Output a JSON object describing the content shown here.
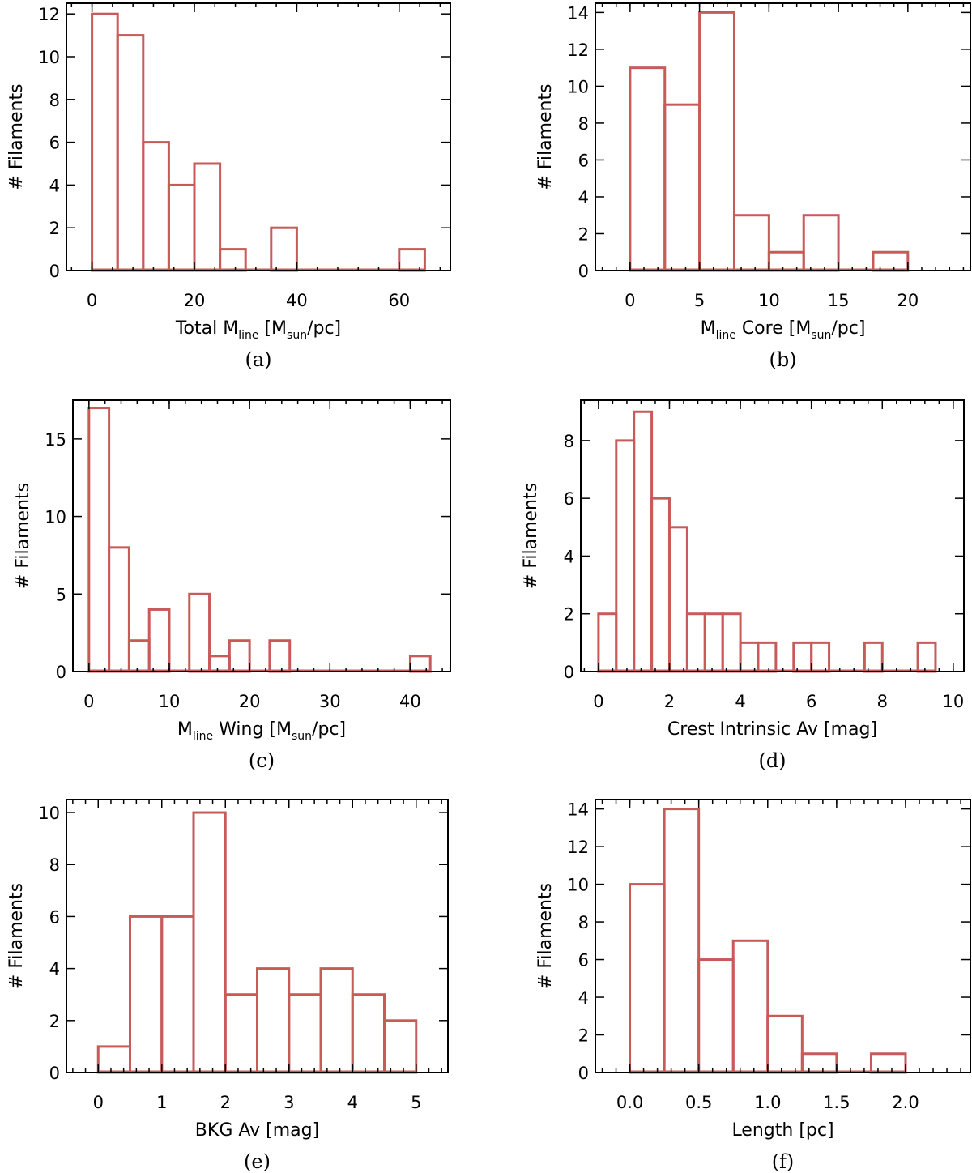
{
  "bar_color": "#c85a5a",
  "chart_data": [
    {
      "type": "bar",
      "caption": "(a)",
      "ylabel": "# Filaments",
      "xlabel_parts": [
        {
          "text": "Total M",
          "style": "normal"
        },
        {
          "text": "line",
          "style": "sub"
        },
        {
          "text": " [M",
          "style": "normal"
        },
        {
          "text": "sun",
          "style": "sub"
        },
        {
          "text": "/pc]",
          "style": "normal"
        }
      ],
      "xlim": [
        -5,
        70
      ],
      "ylim": [
        0,
        12.5
      ],
      "xticks": [
        0,
        20,
        40,
        60
      ],
      "xtick_labels": [
        "0",
        "20",
        "40",
        "60"
      ],
      "yticks": [
        0,
        2,
        4,
        6,
        8,
        10,
        12
      ],
      "ytick_labels": [
        "0",
        "2",
        "4",
        "6",
        "8",
        "10",
        "12"
      ],
      "bin_edges": [
        0,
        5,
        10,
        15,
        20,
        25,
        30,
        35,
        40,
        45,
        50,
        55,
        60,
        65
      ],
      "values": [
        12,
        11,
        6,
        4,
        5,
        1,
        0,
        2,
        0,
        0,
        0,
        0,
        1
      ]
    },
    {
      "type": "bar",
      "caption": "(b)",
      "ylabel": "# Filaments",
      "xlabel_parts": [
        {
          "text": "M",
          "style": "normal"
        },
        {
          "text": "line",
          "style": "sub"
        },
        {
          "text": " Core [M",
          "style": "normal"
        },
        {
          "text": "sun",
          "style": "sub"
        },
        {
          "text": "/pc]",
          "style": "normal"
        }
      ],
      "xlim": [
        -2.5,
        24.5
      ],
      "ylim": [
        0,
        14.5
      ],
      "xticks": [
        0,
        5,
        10,
        15,
        20
      ],
      "xtick_labels": [
        "0",
        "5",
        "10",
        "15",
        "20"
      ],
      "yticks": [
        0,
        2,
        4,
        6,
        8,
        10,
        12,
        14
      ],
      "ytick_labels": [
        "0",
        "2",
        "4",
        "6",
        "8",
        "10",
        "12",
        "14"
      ],
      "bin_edges": [
        0,
        2.5,
        5,
        7.5,
        10,
        12.5,
        15,
        17.5,
        20
      ],
      "values": [
        11,
        9,
        14,
        3,
        1,
        3,
        0,
        1
      ]
    },
    {
      "type": "bar",
      "caption": "(c)",
      "ylabel": "# Filaments",
      "xlabel_parts": [
        {
          "text": "M",
          "style": "normal"
        },
        {
          "text": "line",
          "style": "sub"
        },
        {
          "text": " Wing [M",
          "style": "normal"
        },
        {
          "text": "sun",
          "style": "sub"
        },
        {
          "text": "/pc]",
          "style": "normal"
        }
      ],
      "xlim": [
        -2,
        45
      ],
      "ylim": [
        0,
        17.5
      ],
      "xticks": [
        0,
        10,
        20,
        30,
        40
      ],
      "xtick_labels": [
        "0",
        "10",
        "20",
        "30",
        "40"
      ],
      "yticks": [
        0,
        5,
        10,
        15
      ],
      "ytick_labels": [
        "0",
        "5",
        "10",
        "15"
      ],
      "bin_edges": [
        0,
        2.5,
        5,
        7.5,
        10,
        12.5,
        15,
        17.5,
        20,
        22.5,
        25,
        27.5,
        30,
        32.5,
        35,
        37.5,
        40,
        42.5
      ],
      "values": [
        17,
        8,
        2,
        4,
        0,
        5,
        1,
        2,
        0,
        2,
        0,
        0,
        0,
        0,
        0,
        0,
        1
      ]
    },
    {
      "type": "bar",
      "caption": "(d)",
      "ylabel": "# Filaments",
      "xlabel_parts": [
        {
          "text": "Crest Intrinsic Av [mag]",
          "style": "normal"
        }
      ],
      "xlim": [
        -0.5,
        10.3
      ],
      "ylim": [
        0,
        9.4
      ],
      "xticks": [
        0,
        2,
        4,
        6,
        8,
        10
      ],
      "xtick_labels": [
        "0",
        "2",
        "4",
        "6",
        "8",
        "10"
      ],
      "yticks": [
        0,
        2,
        4,
        6,
        8
      ],
      "ytick_labels": [
        "0",
        "2",
        "4",
        "6",
        "8"
      ],
      "bin_edges": [
        0,
        0.5,
        1,
        1.5,
        2,
        2.5,
        3,
        3.5,
        4,
        4.5,
        5,
        5.5,
        6,
        6.5,
        7,
        7.5,
        8,
        8.5,
        9,
        9.5
      ],
      "values": [
        2,
        8,
        9,
        6,
        5,
        2,
        2,
        2,
        1,
        1,
        0,
        1,
        1,
        0,
        0,
        1,
        0,
        0,
        1
      ]
    },
    {
      "type": "bar",
      "caption": "(e)",
      "ylabel": "# Filaments",
      "xlabel_parts": [
        {
          "text": "BKG Av [mag]",
          "style": "normal"
        }
      ],
      "xlim": [
        -0.5,
        5.5
      ],
      "ylim": [
        0,
        10.5
      ],
      "xticks": [
        0,
        1,
        2,
        3,
        4,
        5
      ],
      "xtick_labels": [
        "0",
        "1",
        "2",
        "3",
        "4",
        "5"
      ],
      "yticks": [
        0,
        2,
        4,
        6,
        8,
        10
      ],
      "ytick_labels": [
        "0",
        "2",
        "4",
        "6",
        "8",
        "10"
      ],
      "bin_edges": [
        0,
        0.5,
        1,
        1.5,
        2,
        2.5,
        3,
        3.5,
        4,
        4.5,
        5
      ],
      "values": [
        1,
        6,
        6,
        10,
        3,
        4,
        3,
        4,
        3,
        2
      ]
    },
    {
      "type": "bar",
      "caption": "(f)",
      "ylabel": "# Filaments",
      "xlabel_parts": [
        {
          "text": "Length [pc]",
          "style": "normal"
        }
      ],
      "xlim": [
        -0.25,
        2.47
      ],
      "ylim": [
        0,
        14.5
      ],
      "xticks": [
        0,
        0.5,
        1,
        1.5,
        2
      ],
      "xtick_labels": [
        "0.0",
        "0.5",
        "1.0",
        "1.5",
        "2.0"
      ],
      "yticks": [
        0,
        2,
        4,
        6,
        8,
        10,
        12,
        14
      ],
      "ytick_labels": [
        "0",
        "2",
        "4",
        "6",
        "8",
        "10",
        "12",
        "14"
      ],
      "bin_edges": [
        0,
        0.25,
        0.5,
        0.75,
        1,
        1.25,
        1.5,
        1.75,
        2
      ],
      "values": [
        10,
        14,
        6,
        7,
        3,
        1,
        0,
        1
      ]
    }
  ]
}
